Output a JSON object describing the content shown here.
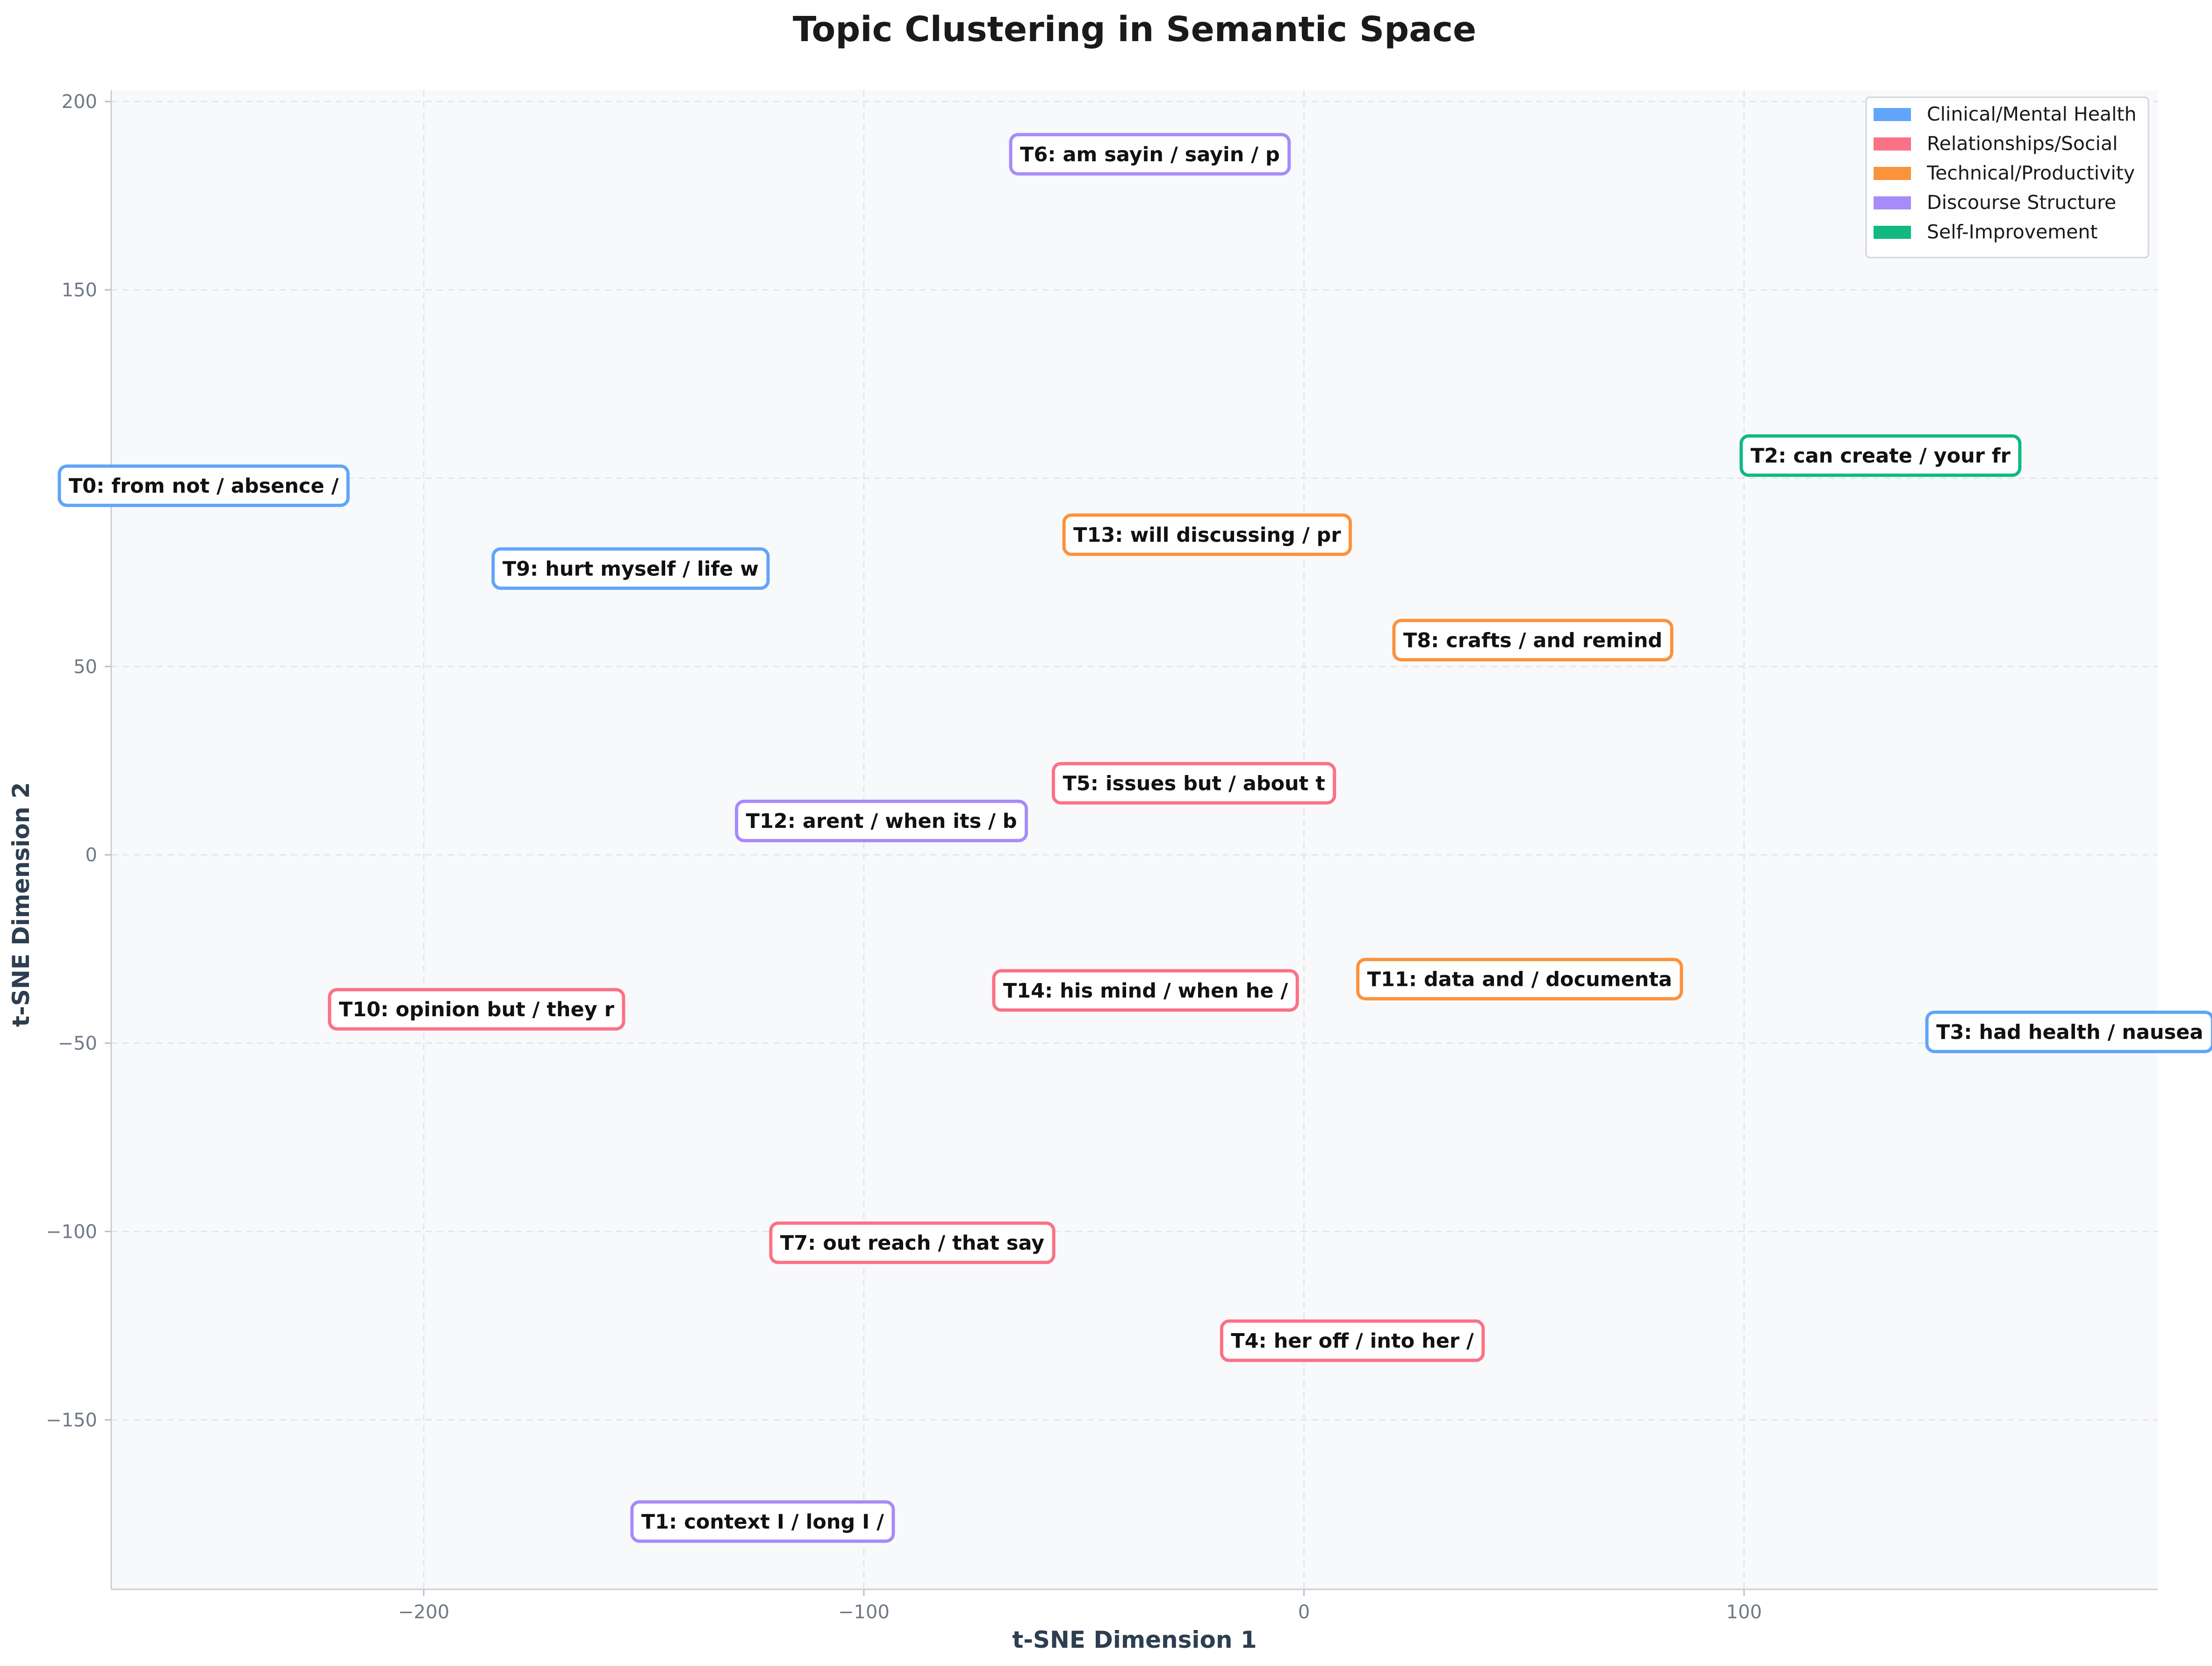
{
  "chart_data": {
    "type": "scatter",
    "title": "Topic Clustering in Semantic Space",
    "xlabel": "t-SNE Dimension 1",
    "ylabel": "t-SNE Dimension 2",
    "xlim": [
      -271,
      194
    ],
    "ylim": [
      -195,
      203
    ],
    "xticks": [
      -200,
      -100,
      0,
      100
    ],
    "yticks": [
      -150,
      -100,
      -50,
      0,
      50,
      100,
      150,
      200
    ],
    "xtick_labels": [
      "−200",
      "−100",
      "0",
      "100"
    ],
    "ytick_labels": [
      "−150",
      "−100",
      "−50",
      "0",
      "50",
      "100",
      "150",
      "200"
    ],
    "grid": true,
    "legend_position": "top-right",
    "legend": [
      {
        "name": "Clinical/Mental Health",
        "color": "#60a5fa"
      },
      {
        "name": "Relationships/Social",
        "color": "#fb7185"
      },
      {
        "name": "Technical/Productivity",
        "color": "#fb923c"
      },
      {
        "name": "Discourse Structure",
        "color": "#a78bfa"
      },
      {
        "name": "Self-Improvement",
        "color": "#10b981"
      }
    ],
    "points": [
      {
        "label": "T0: from not / absence /",
        "x": -250,
        "y": 98,
        "category": 0
      },
      {
        "label": "T1: context I / long I /",
        "x": -123,
        "y": -177,
        "category": 3
      },
      {
        "label": "T2: can create / your fr",
        "x": 131,
        "y": 106,
        "category": 4
      },
      {
        "label": "T3: had health / nausea",
        "x": 174,
        "y": -47,
        "category": 0
      },
      {
        "label": "T4: her off / into her /",
        "x": 11,
        "y": -129,
        "category": 1
      },
      {
        "label": "T5: issues but / about t",
        "x": -25,
        "y": 19,
        "category": 1
      },
      {
        "label": "T6: am sayin / sayin / p",
        "x": -35,
        "y": 186,
        "category": 3
      },
      {
        "label": "T7: out reach / that say",
        "x": -89,
        "y": -103,
        "category": 1
      },
      {
        "label": "T8: crafts / and remind",
        "x": 52,
        "y": 57,
        "category": 2
      },
      {
        "label": "T9: hurt myself / life w",
        "x": -153,
        "y": 76,
        "category": 0
      },
      {
        "label": "T10: opinion but / they r",
        "x": -188,
        "y": -41,
        "category": 1
      },
      {
        "label": "T11: data and / documenta",
        "x": 49,
        "y": -33,
        "category": 2
      },
      {
        "label": "T12: arent / when its / b",
        "x": -96,
        "y": 9,
        "category": 3
      },
      {
        "label": "T13: will discussing / pr",
        "x": -22,
        "y": 85,
        "category": 2
      },
      {
        "label": "T14: his mind / when he /",
        "x": -36,
        "y": -36,
        "category": 1
      }
    ]
  }
}
